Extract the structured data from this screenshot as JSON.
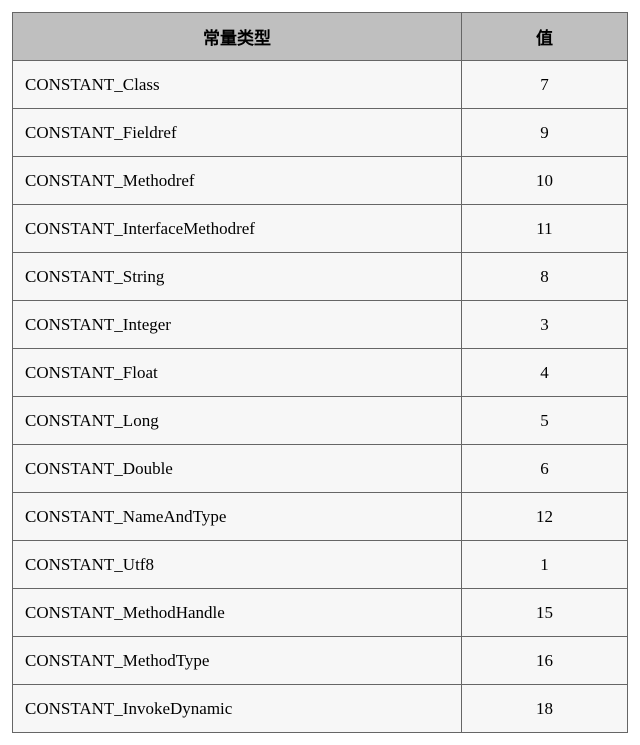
{
  "table": {
    "columns": [
      "常量类型",
      "值"
    ],
    "rows": [
      [
        "CONSTANT_Class",
        "7"
      ],
      [
        "CONSTANT_Fieldref",
        "9"
      ],
      [
        "CONSTANT_Methodref",
        "10"
      ],
      [
        "CONSTANT_InterfaceMethodref",
        "11"
      ],
      [
        "CONSTANT_String",
        "8"
      ],
      [
        "CONSTANT_Integer",
        "3"
      ],
      [
        "CONSTANT_Float",
        "4"
      ],
      [
        "CONSTANT_Long",
        "5"
      ],
      [
        "CONSTANT_Double",
        "6"
      ],
      [
        "CONSTANT_NameAndType",
        "12"
      ],
      [
        "CONSTANT_Utf8",
        "1"
      ],
      [
        "CONSTANT_MethodHandle",
        "15"
      ],
      [
        "CONSTANT_MethodType",
        "16"
      ],
      [
        "CONSTANT_InvokeDynamic",
        "18"
      ]
    ],
    "header_bg": "#bfbfbf",
    "row_bg": "#f7f7f7",
    "border_color": "#666666",
    "font_size": 17,
    "col1_width_pct": 73,
    "col2_width_pct": 27
  }
}
